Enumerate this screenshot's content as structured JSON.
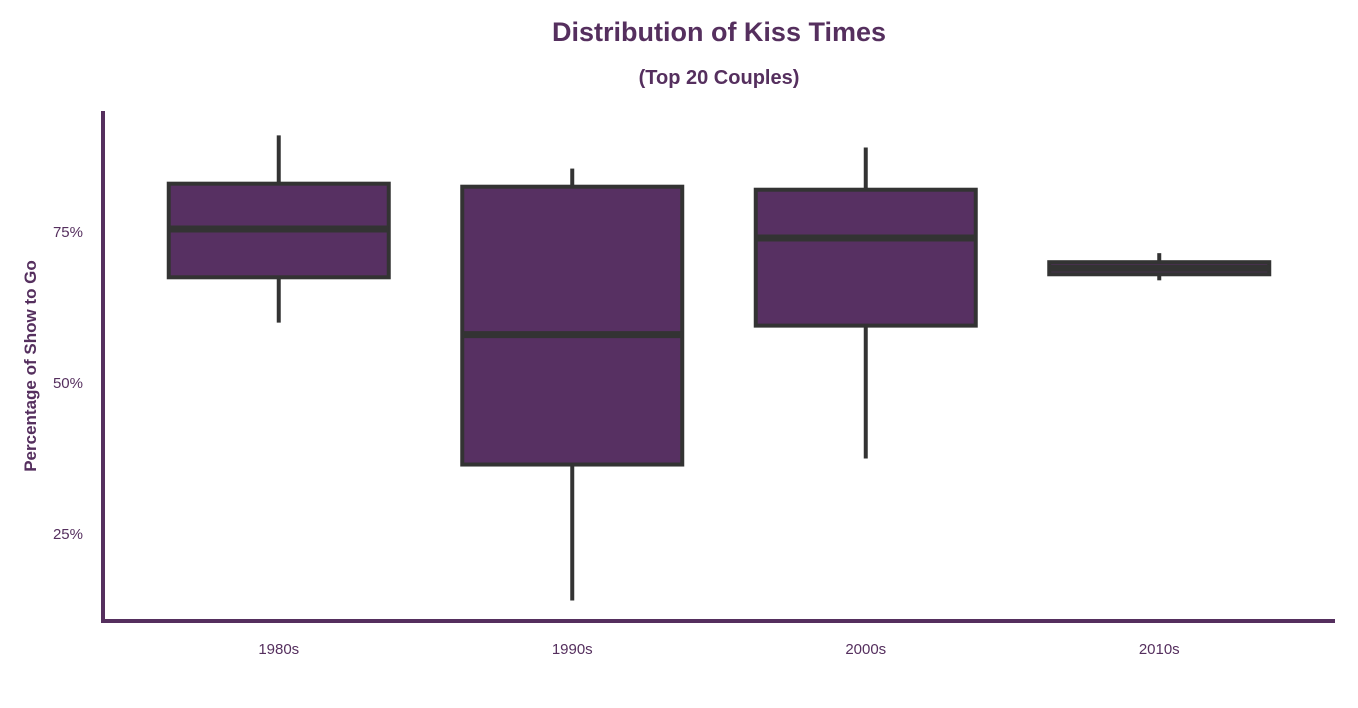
{
  "chart_data": {
    "type": "box",
    "title": "Distribution of Kiss Times",
    "subtitle": "(Top 20 Couples)",
    "xlabel": "",
    "ylabel": "Percentage of Show to Go",
    "categories": [
      "1980s",
      "1990s",
      "2000s",
      "2010s"
    ],
    "yticks": [
      25,
      50,
      75
    ],
    "ytick_labels": [
      "25%",
      "50%",
      "75%"
    ],
    "ylim": [
      8,
      94
    ],
    "grid": false,
    "legend": "none",
    "boxes": [
      {
        "category": "1980s",
        "whisker_low": 60,
        "q1": 67.5,
        "median": 75.5,
        "q3": 83,
        "whisker_high": 91
      },
      {
        "category": "1990s",
        "whisker_low": 14,
        "q1": 36.5,
        "median": 58,
        "q3": 82.5,
        "whisker_high": 85.5
      },
      {
        "category": "2000s",
        "whisker_low": 37.5,
        "q1": 59.5,
        "median": 74,
        "q3": 82,
        "whisker_high": 89
      },
      {
        "category": "2010s",
        "whisker_low": 67,
        "q1": 68,
        "median": 69,
        "q3": 70,
        "whisker_high": 71.5
      }
    ],
    "colors": {
      "box_fill": "#573062",
      "box_edge": "#333333",
      "axis": "#552f5e",
      "text": "#552f5e"
    }
  }
}
